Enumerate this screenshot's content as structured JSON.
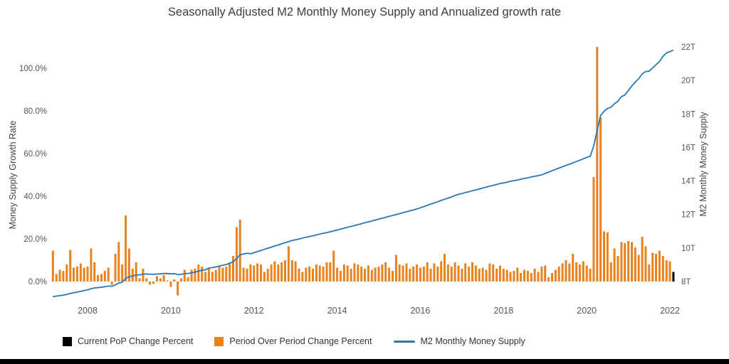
{
  "chart_data": {
    "type": "bar+line",
    "title": "Seasonally Adjusted M2 Monthly Money Supply and Annualized growth rate",
    "x": {
      "start_year": 2007,
      "start_month": 3,
      "months": 180,
      "freq": "monthly",
      "end": "2022-02"
    },
    "x_axis": {
      "ticks": [
        "2008",
        "2010",
        "2012",
        "2014",
        "2016",
        "2018",
        "2020",
        "2022"
      ]
    },
    "left_axis": {
      "label": "Money Supply Growth Rate",
      "ticks": [
        "0.0%",
        "20.0%",
        "40.0%",
        "60.0%",
        "80.0%",
        "100.0%"
      ],
      "tick_values": [
        0,
        20,
        40,
        60,
        80,
        100
      ],
      "range": [
        -8,
        113
      ],
      "grid": false
    },
    "right_axis": {
      "label": "M2 Monthly Money Supply",
      "ticks": [
        "8T",
        "10T",
        "12T",
        "14T",
        "16T",
        "18T",
        "20T",
        "22T"
      ],
      "tick_values": [
        8,
        10,
        12,
        14,
        16,
        18,
        20,
        22
      ],
      "unit": "trillions USD",
      "range": [
        7.0,
        22.7
      ],
      "grid": false
    },
    "legend_position": "bottom",
    "series": [
      {
        "name": "Current PoP Change Percent",
        "type": "bar",
        "color": "#000000",
        "unit": "percent annualized",
        "start_month_index": 179,
        "values": [
          4.5
        ]
      },
      {
        "name": "Period Over Period Change Percent",
        "type": "bar",
        "color": "#e8821d",
        "unit": "percent annualized",
        "values": [
          14.5,
          3.5,
          5.5,
          5,
          8,
          14.8,
          6.5,
          7,
          8.5,
          6.5,
          7,
          15.5,
          9,
          3,
          3.5,
          5,
          6.5,
          -1.5,
          13,
          18.5,
          8,
          31,
          15.5,
          6,
          9,
          1.5,
          6,
          1.5,
          -1.5,
          -1,
          2.5,
          1.5,
          3,
          0.5,
          -2.5,
          1,
          -6.5,
          1.5,
          5.5,
          2,
          5.5,
          6,
          8,
          7,
          4.5,
          6.5,
          4.5,
          5.5,
          7,
          6.5,
          7,
          9,
          12,
          25.5,
          29,
          6.5,
          6,
          8,
          7.5,
          8.5,
          8,
          4.5,
          6,
          8,
          9.5,
          8,
          9,
          10,
          16.5,
          10,
          9.5,
          6,
          4.5,
          6.5,
          7,
          6,
          8,
          7.5,
          7,
          9,
          9,
          14.5,
          6.5,
          5,
          8,
          7.5,
          6,
          8.5,
          8,
          7,
          6,
          7.5,
          5.5,
          6.5,
          7,
          8,
          9,
          6.5,
          5,
          12.5,
          8,
          7.5,
          8.5,
          6,
          7,
          8,
          6.5,
          7,
          9,
          6,
          8.5,
          7,
          9.5,
          13,
          8,
          7,
          9,
          7.5,
          6,
          8.5,
          7,
          9,
          7.5,
          6,
          6.5,
          5.5,
          8.5,
          8,
          6,
          7.5,
          6,
          5.5,
          4.5,
          5,
          6.5,
          4,
          5.5,
          5,
          4,
          6,
          4.5,
          7,
          7.5,
          2,
          4,
          5.5,
          7,
          8.5,
          10,
          8.5,
          13,
          9,
          8,
          9.5,
          7.5,
          6,
          49,
          110,
          77,
          23.5,
          23,
          9,
          15.5,
          12,
          18.5,
          18,
          19,
          18.5,
          16,
          12.5,
          21,
          16.5,
          8,
          13.5,
          13,
          14.5,
          12,
          10,
          9.5
        ]
      },
      {
        "name": "M2 Monthly Money Supply",
        "type": "line",
        "color": "#2878b5",
        "unit": "trillions USD",
        "values": [
          7.1,
          7.13,
          7.16,
          7.19,
          7.23,
          7.29,
          7.33,
          7.37,
          7.42,
          7.46,
          7.5,
          7.57,
          7.62,
          7.64,
          7.66,
          7.69,
          7.73,
          7.72,
          7.8,
          7.91,
          7.96,
          8.19,
          8.29,
          8.33,
          8.39,
          8.4,
          8.44,
          8.45,
          8.44,
          8.43,
          8.45,
          8.46,
          8.48,
          8.48,
          8.46,
          8.47,
          8.42,
          8.43,
          8.47,
          8.48,
          8.52,
          8.56,
          8.62,
          8.67,
          8.7,
          8.8,
          8.83,
          8.87,
          8.92,
          8.97,
          9.02,
          9.09,
          9.18,
          9.37,
          9.59,
          9.64,
          9.69,
          9.66,
          9.72,
          9.79,
          9.85,
          9.92,
          9.99,
          10.05,
          10.12,
          10.18,
          10.25,
          10.32,
          10.38,
          10.45,
          10.49,
          10.54,
          10.59,
          10.64,
          10.69,
          10.73,
          10.78,
          10.83,
          10.88,
          10.92,
          10.97,
          11.02,
          11.07,
          11.13,
          11.18,
          11.24,
          11.29,
          11.34,
          11.4,
          11.45,
          11.51,
          11.56,
          11.61,
          11.67,
          11.72,
          11.78,
          11.83,
          11.89,
          11.94,
          12.0,
          12.05,
          12.11,
          12.16,
          12.22,
          12.27,
          12.33,
          12.4,
          12.47,
          12.55,
          12.62,
          12.69,
          12.76,
          12.84,
          12.91,
          12.98,
          13.05,
          13.13,
          13.2,
          13.25,
          13.31,
          13.36,
          13.42,
          13.47,
          13.52,
          13.58,
          13.63,
          13.69,
          13.74,
          13.79,
          13.85,
          13.89,
          13.93,
          13.98,
          14.02,
          14.06,
          14.11,
          14.15,
          14.19,
          14.24,
          14.28,
          14.32,
          14.37,
          14.45,
          14.53,
          14.61,
          14.69,
          14.77,
          14.85,
          14.93,
          15.0,
          15.08,
          15.16,
          15.24,
          15.32,
          15.41,
          15.47,
          16.08,
          17.02,
          17.9,
          18.16,
          18.33,
          18.4,
          18.61,
          18.76,
          19.04,
          19.13,
          19.4,
          19.67,
          19.9,
          20.11,
          20.39,
          20.53,
          20.55,
          20.75,
          20.94,
          21.13,
          21.44,
          21.64,
          21.73,
          21.81
        ]
      }
    ]
  }
}
